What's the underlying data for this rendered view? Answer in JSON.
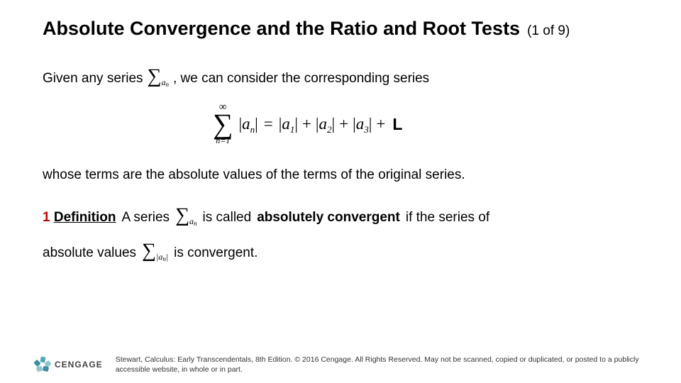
{
  "title": "Absolute Convergence and the Ratio and Root Tests",
  "pager": "(1 of 9)",
  "line1_pre": "Given any series",
  "line1_post": ", we can consider the corresponding series",
  "sigma_glyph": "∑",
  "an_a": "a",
  "an_n": "n",
  "formula": {
    "top": "∞",
    "bottom": "n=1",
    "expansion_subs": [
      "1",
      "2",
      "3"
    ],
    "trailing": "L"
  },
  "line3": "whose terms are the absolute values of the terms of the original series.",
  "def_num": "1",
  "def_word": "Definition",
  "line4_mid": "A series",
  "line4_post_a": "is called",
  "line4_bold": "absolutely convergent",
  "line4_post_b": "if the series of",
  "line5_pre": "absolute values",
  "line5_post": "is convergent.",
  "logo_text": "CENGAGE",
  "copyright": "Stewart, Calculus: Early Transcendentals, 8th Edition. © 2016 Cengage. All Rights Reserved. May not be scanned, copied or duplicated, or posted to a publicly accessible website, in whole or in part.",
  "colors": {
    "def_num": "#c00000",
    "text": "#000000",
    "logo_teal": "#5aa9b8"
  }
}
